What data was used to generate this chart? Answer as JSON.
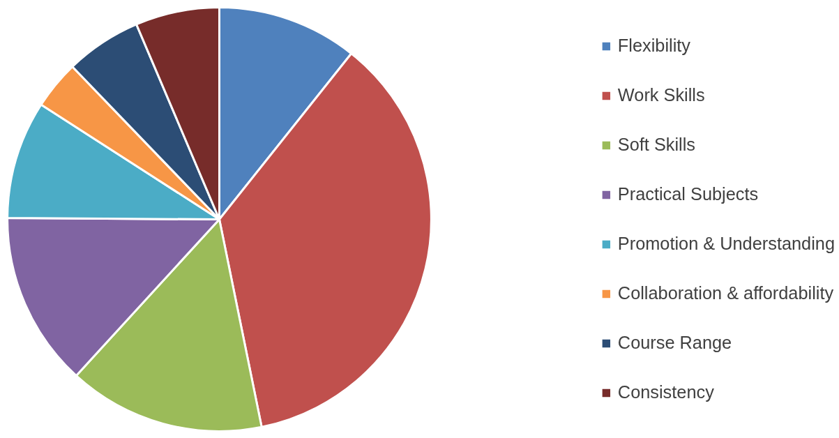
{
  "chart_data": {
    "type": "pie",
    "categories": [
      "Flexibility",
      "Work Skills",
      "Soft Skills",
      "Practical Subjects",
      "Promotion & Understanding",
      "Collaboration & affordability",
      "Course Range",
      "Consistency"
    ],
    "values": [
      10.7,
      36.1,
      15.0,
      13.3,
      9.0,
      3.7,
      5.8,
      6.4
    ],
    "colors": [
      "#4f81bd",
      "#c0504d",
      "#9bbb59",
      "#8064a2",
      "#4bacc6",
      "#f79646",
      "#2c4d75",
      "#772c2a"
    ],
    "legend": "right"
  }
}
